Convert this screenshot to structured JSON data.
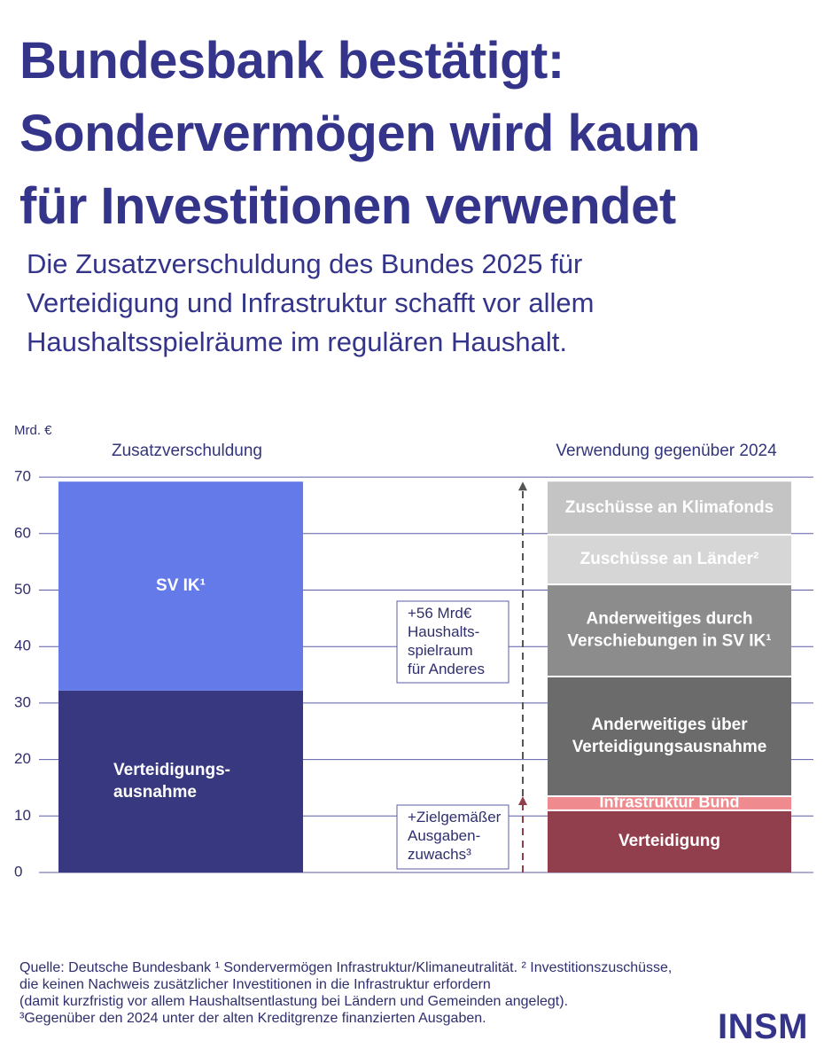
{
  "title_lines": [
    "Bundesbank bestätigt:",
    "Sondervermögen wird kaum",
    "für Investitionen verwendet"
  ],
  "subtitle_lines": [
    "Die Zusatzverschuldung des Bundes 2025 für",
    "Verteidigung und Infrastruktur schafft vor allem",
    "Haushaltsspielräume im regulären Haushalt."
  ],
  "chart_data": {
    "type": "bar",
    "stacked": true,
    "ylabel": "Mrd. €",
    "ylim": [
      0,
      70
    ],
    "yticks": [
      0,
      10,
      20,
      30,
      40,
      50,
      60,
      70
    ],
    "grid": true,
    "bars": [
      {
        "label": "Zusatzverschuldung",
        "segments": [
          {
            "name": "Verteidigungs-\nausnahme",
            "from": 0,
            "to": 32.2,
            "color": "#37387f",
            "text_color": "#ffffff"
          },
          {
            "name": "SV IK¹",
            "from": 32.2,
            "to": 69.2,
            "color": "#647ae8",
            "text_color": "#ffffff"
          }
        ]
      },
      {
        "label": "Verwendung gegenüber 2024",
        "segments": [
          {
            "name": "Verteidigung",
            "from": 0,
            "to": 11,
            "color": "#923f4d",
            "text_color": "#ffffff"
          },
          {
            "name": "Infrastruktur Bund",
            "from": 11,
            "to": 13.5,
            "color": "#ef8a8e",
            "text_color": "#ffffff"
          },
          {
            "name": "Anderweitiges über\nVerteidigungsausnahme",
            "from": 13.5,
            "to": 34.7,
            "color": "#6b6b6b",
            "text_color": "#ffffff"
          },
          {
            "name": "Anderweitiges durch\nVerschiebungen in SV IK¹",
            "from": 34.7,
            "to": 51,
            "color": "#8c8c8c",
            "text_color": "#ffffff"
          },
          {
            "name": "Zuschüsse an Länder²",
            "from": 51,
            "to": 59.8,
            "color": "#d6d6d6",
            "text_color": "#ffffff"
          },
          {
            "name": "Zuschüsse an Klimafonds",
            "from": 59.8,
            "to": 69.2,
            "color": "#c4c4c4",
            "text_color": "#ffffff"
          }
        ]
      }
    ],
    "annotations": [
      {
        "text": "+56 Mrd€\nHaushalts-\nspielraum\nfür Anderes",
        "from": 13.5,
        "to": 69.2,
        "arrow_color": "#555555"
      },
      {
        "text": "+Zielgemäßer\nAusgaben-\nzuwachs³",
        "from": 0,
        "to": 13.5,
        "arrow_color": "#923f4d"
      }
    ]
  },
  "source_lines": [
    "Quelle: Deutsche Bundesbank ¹ Sondervermögen Infrastruktur/Klimaneutralität. ² Investitionszuschüsse,",
    "die keinen Nachweis zusätzlicher Investitionen in die Infrastruktur erfordern",
    "(damit kurzfristig vor allem Haushaltsentlastung bei Ländern und Gemeinden angelegt).",
    "³Gegenüber den 2024 unter der alten Kreditgrenze finanzierten Ausgaben."
  ],
  "logo_text": "INSM",
  "colors": {
    "brand": "#34358a",
    "grid": "#5b5ea6"
  }
}
